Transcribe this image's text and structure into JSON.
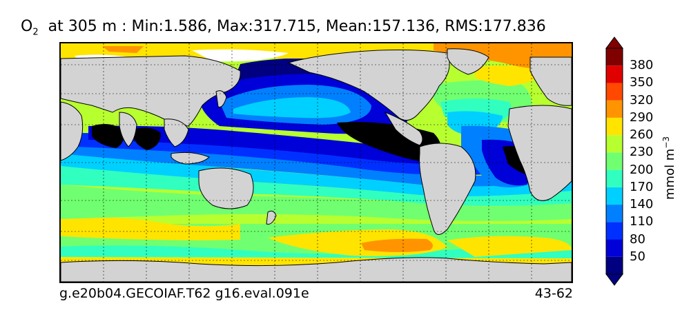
{
  "chart_data": {
    "type": "heatmap",
    "variable": "O",
    "variable_subscript": "2",
    "title_rest": "at 305 m : Min:1.586, Max:317.715, Mean:157.136, RMS:177.836",
    "colorbar": {
      "unit_base": "mmol m",
      "unit_exp": "−3",
      "levels": [
        20,
        50,
        80,
        110,
        140,
        170,
        200,
        230,
        260,
        290,
        320,
        350,
        380,
        410
      ],
      "tick_labels": [
        "50",
        "80",
        "110",
        "140",
        "170",
        "200",
        "230",
        "260",
        "290",
        "320",
        "350",
        "380"
      ],
      "colors": [
        "#000080",
        "#0000d8",
        "#0030ff",
        "#0080ff",
        "#00d0ff",
        "#30ffc0",
        "#70ff70",
        "#b8ff30",
        "#ffe400",
        "#ff9400",
        "#ff4800",
        "#e00000",
        "#800000"
      ],
      "extend": "both"
    },
    "footer_left": "g.e20b04.GECOIAF.T62 g16.eval.091e",
    "footer_right": "43-62",
    "colors": {
      "land": "#d3d3d3",
      "nodata": "#ffffff",
      "anoxic": "#000000"
    }
  }
}
